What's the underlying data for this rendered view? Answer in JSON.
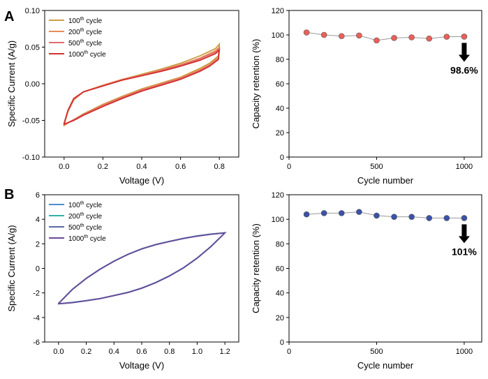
{
  "panels": [
    "A",
    "B"
  ],
  "chart_data": [
    {
      "id": "A-cv",
      "type": "line",
      "panel": "A",
      "xlabel": "Voltage (V)",
      "ylabel": "Specific Current (A/g)",
      "xlim": [
        -0.1,
        0.9
      ],
      "ylim": [
        -0.1,
        0.1
      ],
      "xticks": [
        0.0,
        0.2,
        0.4,
        0.6,
        0.8
      ],
      "xtick_labels": [
        "0.0",
        "0.2",
        "0.4",
        "0.6",
        "0.8"
      ],
      "yticks": [
        -0.1,
        -0.05,
        0.0,
        0.05,
        0.1
      ],
      "ytick_labels": [
        "-0.10",
        "-0.05",
        "0.00",
        "0.05",
        "0.10"
      ],
      "legend": "top-left",
      "series": [
        {
          "name": "100",
          "sup": "th",
          "suffix": " cycle",
          "color": "#c8a042",
          "upper": [
            [
              0,
              -0.056
            ],
            [
              0.02,
              -0.038
            ],
            [
              0.05,
              -0.022
            ],
            [
              0.1,
              -0.011
            ],
            [
              0.2,
              -0.002
            ],
            [
              0.3,
              0.006
            ],
            [
              0.4,
              0.013
            ],
            [
              0.5,
              0.02
            ],
            [
              0.6,
              0.028
            ],
            [
              0.7,
              0.038
            ],
            [
              0.78,
              0.048
            ],
            [
              0.8,
              0.054
            ]
          ],
          "lower": [
            [
              0.8,
              0.054
            ],
            [
              0.795,
              0.038
            ],
            [
              0.75,
              0.028
            ],
            [
              0.7,
              0.021
            ],
            [
              0.6,
              0.009
            ],
            [
              0.5,
              0.001
            ],
            [
              0.4,
              -0.007
            ],
            [
              0.3,
              -0.017
            ],
            [
              0.2,
              -0.028
            ],
            [
              0.1,
              -0.041
            ],
            [
              0.05,
              -0.049
            ],
            [
              0,
              -0.057
            ]
          ]
        },
        {
          "name": "200",
          "sup": "th",
          "suffix": " cycle",
          "color": "#e88a58",
          "upper": [
            [
              0,
              -0.055
            ],
            [
              0.02,
              -0.037
            ],
            [
              0.05,
              -0.021
            ],
            [
              0.1,
              -0.011
            ],
            [
              0.2,
              -0.002
            ],
            [
              0.3,
              0.006
            ],
            [
              0.4,
              0.012
            ],
            [
              0.5,
              0.019
            ],
            [
              0.6,
              0.026
            ],
            [
              0.7,
              0.035
            ],
            [
              0.78,
              0.045
            ],
            [
              0.8,
              0.05
            ]
          ],
          "lower": [
            [
              0.8,
              0.05
            ],
            [
              0.795,
              0.036
            ],
            [
              0.75,
              0.026
            ],
            [
              0.7,
              0.019
            ],
            [
              0.6,
              0.008
            ],
            [
              0.5,
              0.0
            ],
            [
              0.4,
              -0.008
            ],
            [
              0.3,
              -0.018
            ],
            [
              0.2,
              -0.029
            ],
            [
              0.1,
              -0.042
            ],
            [
              0.05,
              -0.049
            ],
            [
              0,
              -0.056
            ]
          ]
        },
        {
          "name": "500",
          "sup": "th",
          "suffix": " cycle",
          "color": "#e36a6a",
          "upper": [
            [
              0,
              -0.055
            ],
            [
              0.02,
              -0.037
            ],
            [
              0.05,
              -0.021
            ],
            [
              0.1,
              -0.011
            ],
            [
              0.2,
              -0.003
            ],
            [
              0.3,
              0.005
            ],
            [
              0.4,
              0.011
            ],
            [
              0.5,
              0.018
            ],
            [
              0.6,
              0.025
            ],
            [
              0.7,
              0.034
            ],
            [
              0.78,
              0.043
            ],
            [
              0.8,
              0.048
            ]
          ],
          "lower": [
            [
              0.8,
              0.048
            ],
            [
              0.795,
              0.034
            ],
            [
              0.75,
              0.025
            ],
            [
              0.7,
              0.018
            ],
            [
              0.6,
              0.007
            ],
            [
              0.5,
              -0.001
            ],
            [
              0.4,
              -0.009
            ],
            [
              0.3,
              -0.019
            ],
            [
              0.2,
              -0.03
            ],
            [
              0.1,
              -0.042
            ],
            [
              0.05,
              -0.049
            ],
            [
              0,
              -0.056
            ]
          ]
        },
        {
          "name": "1000",
          "sup": "th",
          "suffix": " cycle",
          "color": "#d23030",
          "upper": [
            [
              0,
              -0.054
            ],
            [
              0.02,
              -0.036
            ],
            [
              0.05,
              -0.02
            ],
            [
              0.1,
              -0.011
            ],
            [
              0.2,
              -0.003
            ],
            [
              0.3,
              0.005
            ],
            [
              0.4,
              0.011
            ],
            [
              0.5,
              0.017
            ],
            [
              0.6,
              0.024
            ],
            [
              0.7,
              0.032
            ],
            [
              0.78,
              0.041
            ],
            [
              0.8,
              0.046
            ]
          ],
          "lower": [
            [
              0.8,
              0.046
            ],
            [
              0.795,
              0.033
            ],
            [
              0.75,
              0.024
            ],
            [
              0.7,
              0.017
            ],
            [
              0.6,
              0.006
            ],
            [
              0.5,
              -0.002
            ],
            [
              0.4,
              -0.01
            ],
            [
              0.3,
              -0.02
            ],
            [
              0.2,
              -0.031
            ],
            [
              0.1,
              -0.043
            ],
            [
              0.05,
              -0.05
            ],
            [
              0,
              -0.055
            ]
          ]
        }
      ]
    },
    {
      "id": "A-retention",
      "type": "scatter",
      "panel": "A",
      "xlabel": "Cycle number",
      "ylabel": "Capacity retention (%)",
      "xlim": [
        0,
        1100
      ],
      "ylim": [
        0,
        120
      ],
      "xticks": [
        0,
        500,
        1000
      ],
      "xtick_labels": [
        "0",
        "500",
        "1000"
      ],
      "yticks": [
        0,
        20,
        40,
        60,
        80,
        100,
        120
      ],
      "ytick_labels": [
        "0",
        "20",
        "40",
        "60",
        "80",
        "100",
        "120"
      ],
      "marker_color": "#e8605a",
      "line_color": "#999999",
      "x": [
        100,
        200,
        300,
        400,
        500,
        600,
        700,
        800,
        900,
        1000
      ],
      "y": [
        102,
        100,
        99,
        99.5,
        95.5,
        97.5,
        98,
        97,
        98.5,
        98.6
      ],
      "annotation": "98.6%"
    },
    {
      "id": "B-cv",
      "type": "line",
      "panel": "B",
      "xlabel": "Voltage (V)",
      "ylabel": "Specific Current (A/g)",
      "xlim": [
        -0.1,
        1.3
      ],
      "ylim": [
        -6,
        6
      ],
      "xticks": [
        0.0,
        0.2,
        0.4,
        0.6,
        0.8,
        1.0,
        1.2
      ],
      "xtick_labels": [
        "0.0",
        "0.2",
        "0.4",
        "0.6",
        "0.8",
        "1.0",
        "1.2"
      ],
      "yticks": [
        -6,
        -4,
        -2,
        0,
        2,
        4,
        6
      ],
      "ytick_labels": [
        "-6",
        "-4",
        "-2",
        "0",
        "2",
        "4",
        "6"
      ],
      "legend": "top-left",
      "series": [
        {
          "name": "100",
          "sup": "th",
          "suffix": " cycle",
          "color": "#4a90d0",
          "upper": [
            [
              0,
              -2.85
            ],
            [
              0.1,
              -1.7
            ],
            [
              0.2,
              -0.8
            ],
            [
              0.3,
              -0.05
            ],
            [
              0.4,
              0.6
            ],
            [
              0.5,
              1.15
            ],
            [
              0.6,
              1.6
            ],
            [
              0.7,
              1.95
            ],
            [
              0.8,
              2.2
            ],
            [
              0.9,
              2.45
            ],
            [
              1.0,
              2.65
            ],
            [
              1.1,
              2.8
            ],
            [
              1.2,
              2.9
            ]
          ],
          "lower": [
            [
              1.2,
              2.9
            ],
            [
              1.1,
              1.8
            ],
            [
              1.0,
              0.85
            ],
            [
              0.9,
              0.05
            ],
            [
              0.8,
              -0.6
            ],
            [
              0.7,
              -1.15
            ],
            [
              0.6,
              -1.6
            ],
            [
              0.5,
              -1.95
            ],
            [
              0.4,
              -2.2
            ],
            [
              0.3,
              -2.45
            ],
            [
              0.2,
              -2.62
            ],
            [
              0.1,
              -2.77
            ],
            [
              0,
              -2.88
            ]
          ]
        },
        {
          "name": "200",
          "sup": "th",
          "suffix": " cycle",
          "color": "#30b0a8",
          "upper": [
            [
              0,
              -2.85
            ],
            [
              0.1,
              -1.71
            ],
            [
              0.2,
              -0.81
            ],
            [
              0.3,
              -0.06
            ],
            [
              0.4,
              0.59
            ],
            [
              0.5,
              1.14
            ],
            [
              0.6,
              1.59
            ],
            [
              0.7,
              1.94
            ],
            [
              0.8,
              2.2
            ],
            [
              0.9,
              2.44
            ],
            [
              1.0,
              2.64
            ],
            [
              1.1,
              2.79
            ],
            [
              1.2,
              2.9
            ]
          ],
          "lower": [
            [
              1.2,
              2.9
            ],
            [
              1.1,
              1.79
            ],
            [
              1.0,
              0.84
            ],
            [
              0.9,
              0.04
            ],
            [
              0.8,
              -0.61
            ],
            [
              0.7,
              -1.16
            ],
            [
              0.6,
              -1.61
            ],
            [
              0.5,
              -1.96
            ],
            [
              0.4,
              -2.21
            ],
            [
              0.3,
              -2.46
            ],
            [
              0.2,
              -2.63
            ],
            [
              0.1,
              -2.78
            ],
            [
              0,
              -2.88
            ]
          ]
        },
        {
          "name": "500",
          "sup": "th",
          "suffix": " cycle",
          "color": "#5a6aa8",
          "upper": [
            [
              0,
              -2.86
            ],
            [
              0.1,
              -1.72
            ],
            [
              0.2,
              -0.82
            ],
            [
              0.3,
              -0.07
            ],
            [
              0.4,
              0.58
            ],
            [
              0.5,
              1.13
            ],
            [
              0.6,
              1.58
            ],
            [
              0.7,
              1.93
            ],
            [
              0.8,
              2.19
            ],
            [
              0.9,
              2.43
            ],
            [
              1.0,
              2.63
            ],
            [
              1.1,
              2.78
            ],
            [
              1.2,
              2.89
            ]
          ],
          "lower": [
            [
              1.2,
              2.89
            ],
            [
              1.1,
              1.78
            ],
            [
              1.0,
              0.83
            ],
            [
              0.9,
              0.03
            ],
            [
              0.8,
              -0.62
            ],
            [
              0.7,
              -1.17
            ],
            [
              0.6,
              -1.62
            ],
            [
              0.5,
              -1.97
            ],
            [
              0.4,
              -2.22
            ],
            [
              0.3,
              -2.47
            ],
            [
              0.2,
              -2.64
            ],
            [
              0.1,
              -2.79
            ],
            [
              0,
              -2.89
            ]
          ]
        },
        {
          "name": "1000",
          "sup": "th",
          "suffix": " cycle",
          "color": "#6a4a98",
          "upper": [
            [
              0,
              -2.86
            ],
            [
              0.1,
              -1.72
            ],
            [
              0.2,
              -0.82
            ],
            [
              0.3,
              -0.07
            ],
            [
              0.4,
              0.58
            ],
            [
              0.5,
              1.13
            ],
            [
              0.6,
              1.58
            ],
            [
              0.7,
              1.93
            ],
            [
              0.8,
              2.19
            ],
            [
              0.9,
              2.43
            ],
            [
              1.0,
              2.63
            ],
            [
              1.1,
              2.78
            ],
            [
              1.2,
              2.89
            ]
          ],
          "lower": [
            [
              1.2,
              2.89
            ],
            [
              1.1,
              1.78
            ],
            [
              1.0,
              0.83
            ],
            [
              0.9,
              0.03
            ],
            [
              0.8,
              -0.62
            ],
            [
              0.7,
              -1.17
            ],
            [
              0.6,
              -1.62
            ],
            [
              0.5,
              -1.97
            ],
            [
              0.4,
              -2.22
            ],
            [
              0.3,
              -2.47
            ],
            [
              0.2,
              -2.64
            ],
            [
              0.1,
              -2.79
            ],
            [
              0,
              -2.89
            ]
          ]
        }
      ]
    },
    {
      "id": "B-retention",
      "type": "scatter",
      "panel": "B",
      "xlabel": "Cycle number",
      "ylabel": "Capacity retention (%)",
      "xlim": [
        0,
        1100
      ],
      "ylim": [
        0,
        120
      ],
      "xticks": [
        0,
        500,
        1000
      ],
      "xtick_labels": [
        "0",
        "500",
        "1000"
      ],
      "yticks": [
        0,
        20,
        40,
        60,
        80,
        100,
        120
      ],
      "ytick_labels": [
        "0",
        "20",
        "40",
        "60",
        "80",
        "100",
        "120"
      ],
      "marker_color": "#3a52a8",
      "line_color": "#999999",
      "x": [
        100,
        200,
        300,
        400,
        500,
        600,
        700,
        800,
        900,
        1000
      ],
      "y": [
        104,
        105,
        105,
        106,
        103,
        102,
        102,
        101,
        101,
        101
      ],
      "annotation": "101%"
    }
  ]
}
